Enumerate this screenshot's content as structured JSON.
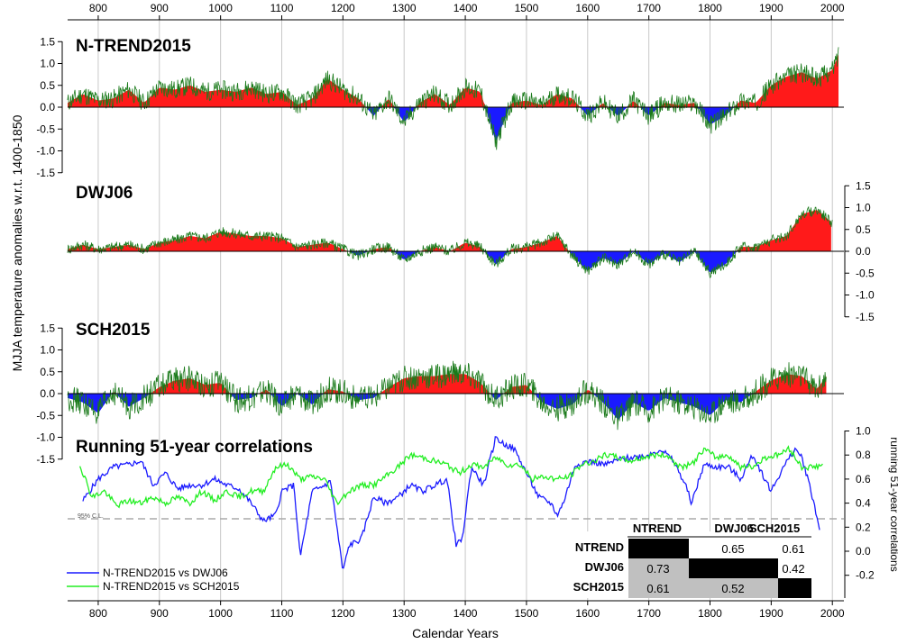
{
  "figure": {
    "ylabel_left": "MJJA temperature anomalies w.r.t. 1400-1850",
    "ylabel_right": "running 51-year correlations",
    "xlabel": "Calendar Years",
    "confidence_label": "95% C.L."
  },
  "axes": {
    "x_ticks": [
      "800",
      "900",
      "1000",
      "1100",
      "1200",
      "1300",
      "1400",
      "1500",
      "1600",
      "1700",
      "1800",
      "1900",
      "2000"
    ],
    "temp_ticks": [
      "1.5",
      "1.0",
      "0.5",
      "0.0",
      "-0.5",
      "-1.0",
      "-1.5"
    ],
    "corr_ticks": [
      "1.0",
      "0.8",
      "0.6",
      "0.4",
      "0.2",
      "0.0",
      "-0.2"
    ]
  },
  "panels": [
    {
      "title": "N-TREND2015"
    },
    {
      "title": "DWJ06"
    },
    {
      "title": "SCH2015"
    },
    {
      "title": "Running 51-year correlations"
    }
  ],
  "legend": [
    {
      "label": "N-TREND2015 vs DWJ06",
      "color": "#1a1aff"
    },
    {
      "label": "N-TREND2015 vs SCH2015",
      "color": "#22ee22"
    }
  ],
  "corr_table": {
    "headers": [
      "NTREND",
      "DWJ06",
      "SCH2015"
    ],
    "rows": [
      {
        "label": "NTREND",
        "cells": [
          "",
          "0.65",
          "0.61"
        ]
      },
      {
        "label": "DWJ06",
        "cells": [
          "0.73",
          "",
          "0.42"
        ]
      },
      {
        "label": "SCH2015",
        "cells": [
          "0.61",
          "0.52",
          ""
        ]
      }
    ]
  },
  "colors": {
    "positive": "#ff1a1a",
    "negative": "#1a1aff",
    "annual": "#1a7a1a",
    "grid": "#c8c8c8"
  },
  "chart_data": [
    {
      "type": "area",
      "title": "N-TREND2015",
      "ylim": [
        -1.5,
        1.5
      ],
      "x": [
        750,
        775,
        800,
        825,
        850,
        875,
        900,
        925,
        950,
        975,
        1000,
        1025,
        1050,
        1075,
        1100,
        1125,
        1150,
        1175,
        1200,
        1225,
        1250,
        1275,
        1300,
        1325,
        1350,
        1375,
        1400,
        1425,
        1450,
        1475,
        1500,
        1525,
        1550,
        1575,
        1600,
        1625,
        1650,
        1675,
        1700,
        1725,
        1750,
        1775,
        1800,
        1825,
        1850,
        1875,
        1900,
        1925,
        1950,
        1975,
        2000,
        2010
      ],
      "values": [
        0.1,
        0.3,
        0.15,
        0.2,
        0.4,
        0.1,
        0.45,
        0.4,
        0.5,
        0.35,
        0.4,
        0.35,
        0.45,
        0.3,
        0.35,
        0.05,
        0.2,
        0.65,
        0.4,
        0.2,
        -0.2,
        0.2,
        -0.35,
        0.1,
        0.3,
        0.05,
        0.45,
        0.35,
        -0.8,
        0.1,
        0.15,
        0.05,
        0.3,
        0.2,
        -0.2,
        0.1,
        -0.2,
        0.15,
        -0.2,
        0.1,
        0.05,
        0.1,
        -0.4,
        -0.2,
        0.15,
        0.1,
        0.5,
        0.7,
        0.8,
        0.65,
        0.85,
        1.2
      ]
    },
    {
      "type": "area",
      "title": "DWJ06",
      "ylim": [
        -1.5,
        1.5
      ],
      "x": [
        750,
        775,
        800,
        825,
        850,
        875,
        900,
        925,
        950,
        975,
        1000,
        1025,
        1050,
        1075,
        1100,
        1125,
        1150,
        1175,
        1200,
        1225,
        1250,
        1275,
        1300,
        1325,
        1350,
        1375,
        1400,
        1425,
        1450,
        1475,
        1500,
        1525,
        1550,
        1575,
        1600,
        1625,
        1650,
        1675,
        1700,
        1725,
        1750,
        1775,
        1800,
        1825,
        1850,
        1875,
        1900,
        1925,
        1950,
        1975,
        2000
      ],
      "values": [
        0.05,
        0.15,
        0.05,
        0.1,
        0.15,
        0.05,
        0.2,
        0.25,
        0.35,
        0.3,
        0.45,
        0.4,
        0.35,
        0.35,
        0.3,
        0.1,
        0.15,
        0.2,
        0.05,
        -0.1,
        0.05,
        0.1,
        -0.2,
        0.0,
        0.1,
        0.0,
        0.2,
        0.1,
        -0.3,
        0.05,
        0.1,
        0.2,
        0.35,
        -0.1,
        -0.45,
        -0.15,
        -0.3,
        0.0,
        -0.3,
        -0.05,
        -0.25,
        0.0,
        -0.5,
        -0.3,
        0.1,
        0.1,
        0.25,
        0.35,
        0.85,
        0.95,
        0.65
      ]
    },
    {
      "type": "area",
      "title": "SCH2015",
      "ylim": [
        -1.5,
        1.5
      ],
      "x": [
        750,
        775,
        800,
        825,
        850,
        875,
        900,
        925,
        950,
        975,
        1000,
        1025,
        1050,
        1075,
        1100,
        1125,
        1150,
        1175,
        1200,
        1225,
        1250,
        1275,
        1300,
        1325,
        1350,
        1375,
        1400,
        1425,
        1450,
        1475,
        1500,
        1525,
        1550,
        1575,
        1600,
        1625,
        1650,
        1675,
        1700,
        1725,
        1750,
        1775,
        1800,
        1825,
        1850,
        1875,
        1900,
        1925,
        1950,
        1975,
        1990
      ],
      "values": [
        -0.1,
        -0.2,
        -0.45,
        0.05,
        -0.3,
        -0.1,
        0.15,
        0.3,
        0.35,
        0.2,
        0.25,
        -0.15,
        -0.1,
        0.1,
        -0.3,
        0.0,
        -0.25,
        0.1,
        0.05,
        -0.15,
        -0.1,
        0.15,
        0.35,
        0.4,
        0.4,
        0.45,
        0.45,
        0.25,
        -0.15,
        0.15,
        0.2,
        -0.2,
        -0.35,
        -0.25,
        0.1,
        -0.2,
        -0.6,
        -0.2,
        -0.4,
        -0.1,
        -0.2,
        -0.3,
        -0.5,
        -0.15,
        -0.2,
        0.05,
        0.3,
        0.45,
        0.4,
        0.1,
        0.4
      ]
    },
    {
      "type": "line",
      "title": "Running 51-year correlations",
      "ylabel": "running 51-year correlations",
      "ylim": [
        -0.2,
        1.0
      ],
      "threshold": 0.27,
      "series": [
        {
          "name": "N-TREND2015 vs DWJ06",
          "x": [
            775,
            800,
            825,
            850,
            870,
            890,
            910,
            930,
            950,
            970,
            990,
            1010,
            1030,
            1050,
            1070,
            1090,
            1100,
            1120,
            1130,
            1150,
            1160,
            1180,
            1200,
            1210,
            1230,
            1250,
            1270,
            1290,
            1310,
            1330,
            1350,
            1370,
            1385,
            1395,
            1410,
            1430,
            1450,
            1460,
            1480,
            1500,
            1520,
            1540,
            1550,
            1560,
            1580,
            1600,
            1630,
            1650,
            1670,
            1700,
            1720,
            1740,
            1760,
            1770,
            1790,
            1810,
            1830,
            1850,
            1870,
            1900,
            1920,
            1940,
            1950,
            1960,
            1970,
            1980
          ],
          "y": [
            0.42,
            0.6,
            0.7,
            0.72,
            0.75,
            0.55,
            0.65,
            0.52,
            0.55,
            0.55,
            0.6,
            0.55,
            0.52,
            0.4,
            0.25,
            0.3,
            0.5,
            0.55,
            -0.05,
            0.5,
            0.52,
            0.58,
            -0.17,
            0.05,
            0.1,
            0.45,
            0.4,
            0.45,
            0.55,
            0.5,
            0.55,
            0.6,
            0.05,
            0.1,
            0.7,
            0.55,
            0.95,
            0.9,
            0.85,
            0.65,
            0.45,
            0.4,
            0.3,
            0.4,
            0.72,
            0.75,
            0.72,
            0.76,
            0.78,
            0.8,
            0.85,
            0.75,
            0.55,
            0.4,
            0.72,
            0.7,
            0.7,
            0.6,
            0.8,
            0.5,
            0.7,
            0.85,
            0.78,
            0.6,
            0.4,
            0.15
          ]
        },
        {
          "name": "N-TREND2015 vs SCH2015",
          "x": [
            770,
            790,
            810,
            830,
            850,
            870,
            890,
            910,
            930,
            950,
            970,
            990,
            1010,
            1030,
            1050,
            1070,
            1090,
            1110,
            1130,
            1150,
            1170,
            1190,
            1210,
            1230,
            1250,
            1270,
            1290,
            1310,
            1330,
            1350,
            1370,
            1390,
            1410,
            1430,
            1450,
            1470,
            1490,
            1510,
            1530,
            1550,
            1570,
            1590,
            1610,
            1630,
            1650,
            1670,
            1690,
            1710,
            1730,
            1750,
            1770,
            1790,
            1810,
            1830,
            1850,
            1870,
            1890,
            1910,
            1930,
            1950,
            1970,
            1985
          ],
          "y": [
            0.72,
            0.45,
            0.5,
            0.38,
            0.42,
            0.4,
            0.45,
            0.4,
            0.45,
            0.4,
            0.5,
            0.42,
            0.5,
            0.45,
            0.5,
            0.5,
            0.7,
            0.72,
            0.6,
            0.62,
            0.6,
            0.4,
            0.5,
            0.55,
            0.55,
            0.62,
            0.7,
            0.8,
            0.78,
            0.75,
            0.72,
            0.65,
            0.72,
            0.7,
            0.78,
            0.72,
            0.72,
            0.6,
            0.62,
            0.6,
            0.62,
            0.72,
            0.75,
            0.8,
            0.78,
            0.75,
            0.78,
            0.8,
            0.8,
            0.7,
            0.72,
            0.85,
            0.78,
            0.8,
            0.7,
            0.7,
            0.78,
            0.8,
            0.85,
            0.7,
            0.7,
            0.72
          ]
        }
      ]
    }
  ]
}
